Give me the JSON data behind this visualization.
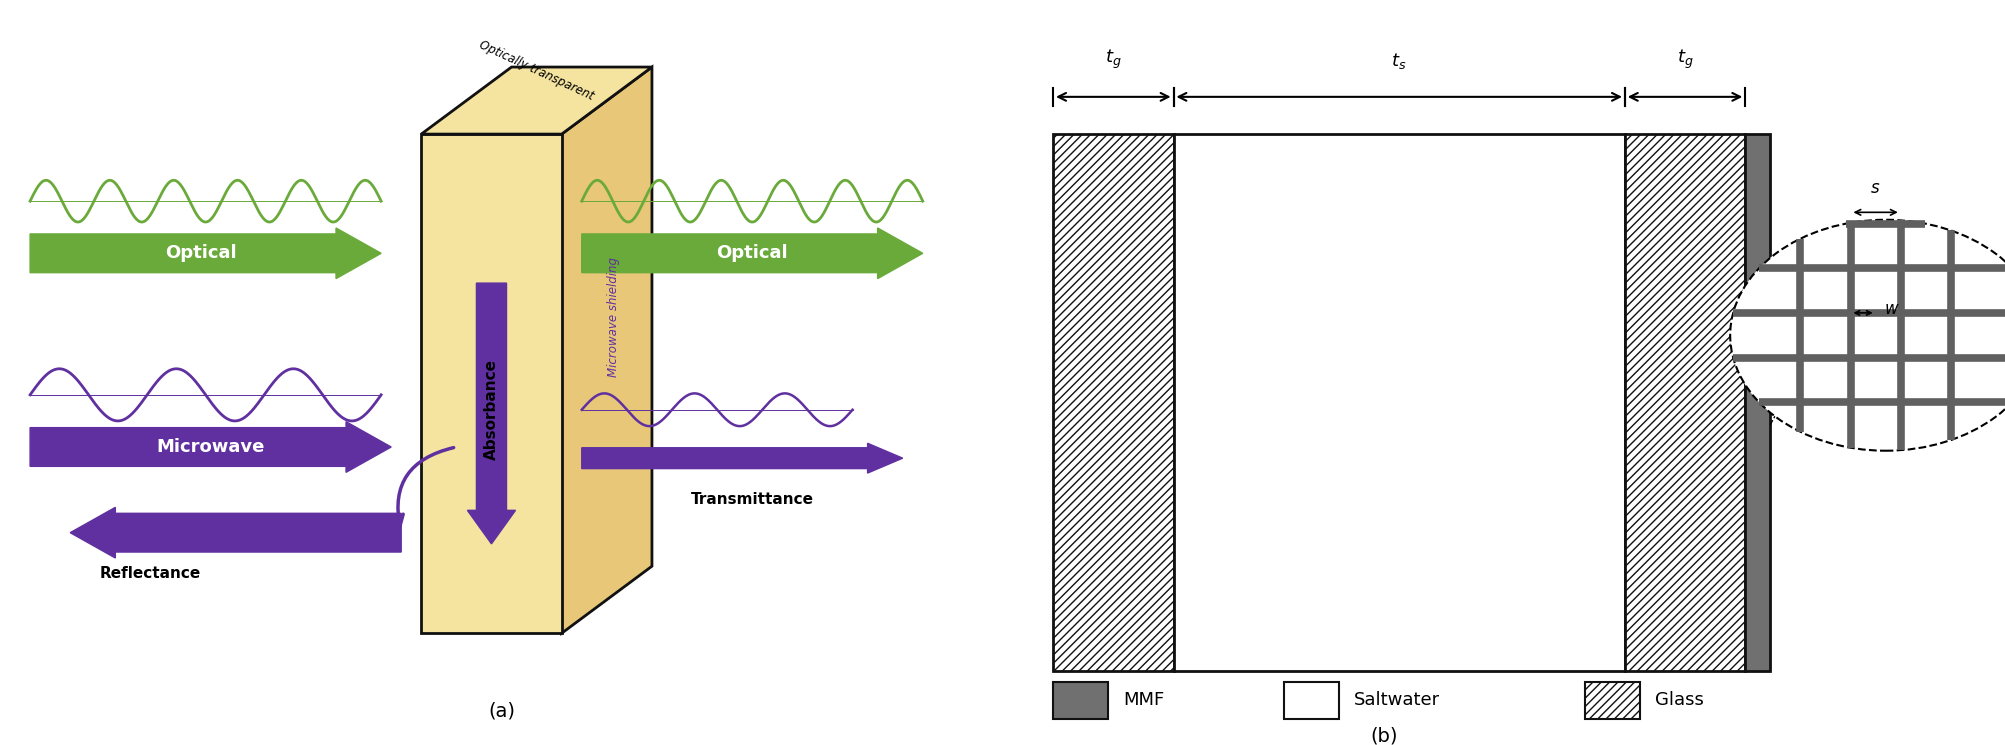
{
  "fig_width": 20.06,
  "fig_height": 7.45,
  "panel_a": {
    "slab_color": "#F5E4A0",
    "slab_side_color": "#E8C878",
    "slab_edge_color": "#111111",
    "optical_wave_color": "#6aaa3a",
    "microwave_wave_color": "#6030a0",
    "optical_arrow_color": "#6aaa3a",
    "microwave_arrow_color": "#6030a0",
    "label_optical": "Optical",
    "label_microwave": "Microwave",
    "label_reflectance": "Reflectance",
    "label_absorbance": "Absorbance",
    "label_transmittance": "Transmittance",
    "label_optically_transparent": "Optically transparent",
    "label_microwave_shielding": "Microwave shielding",
    "caption": "(a)"
  },
  "panel_b": {
    "glass_hatch": "////",
    "glass_color": "#ffffff",
    "glass_edge_color": "#111111",
    "saltwater_color": "#ffffff",
    "saltwater_edge_color": "#111111",
    "mmf_color": "#707070",
    "mmf_edge_color": "#111111",
    "mesh_color": "#606060",
    "label_tg": "$t_g$",
    "label_ts": "$t_s$",
    "label_s": "$s$",
    "label_w": "$w$",
    "legend_mmf": "MMF",
    "legend_saltwater": "Saltwater",
    "legend_glass": "Glass",
    "caption": "(b)"
  }
}
